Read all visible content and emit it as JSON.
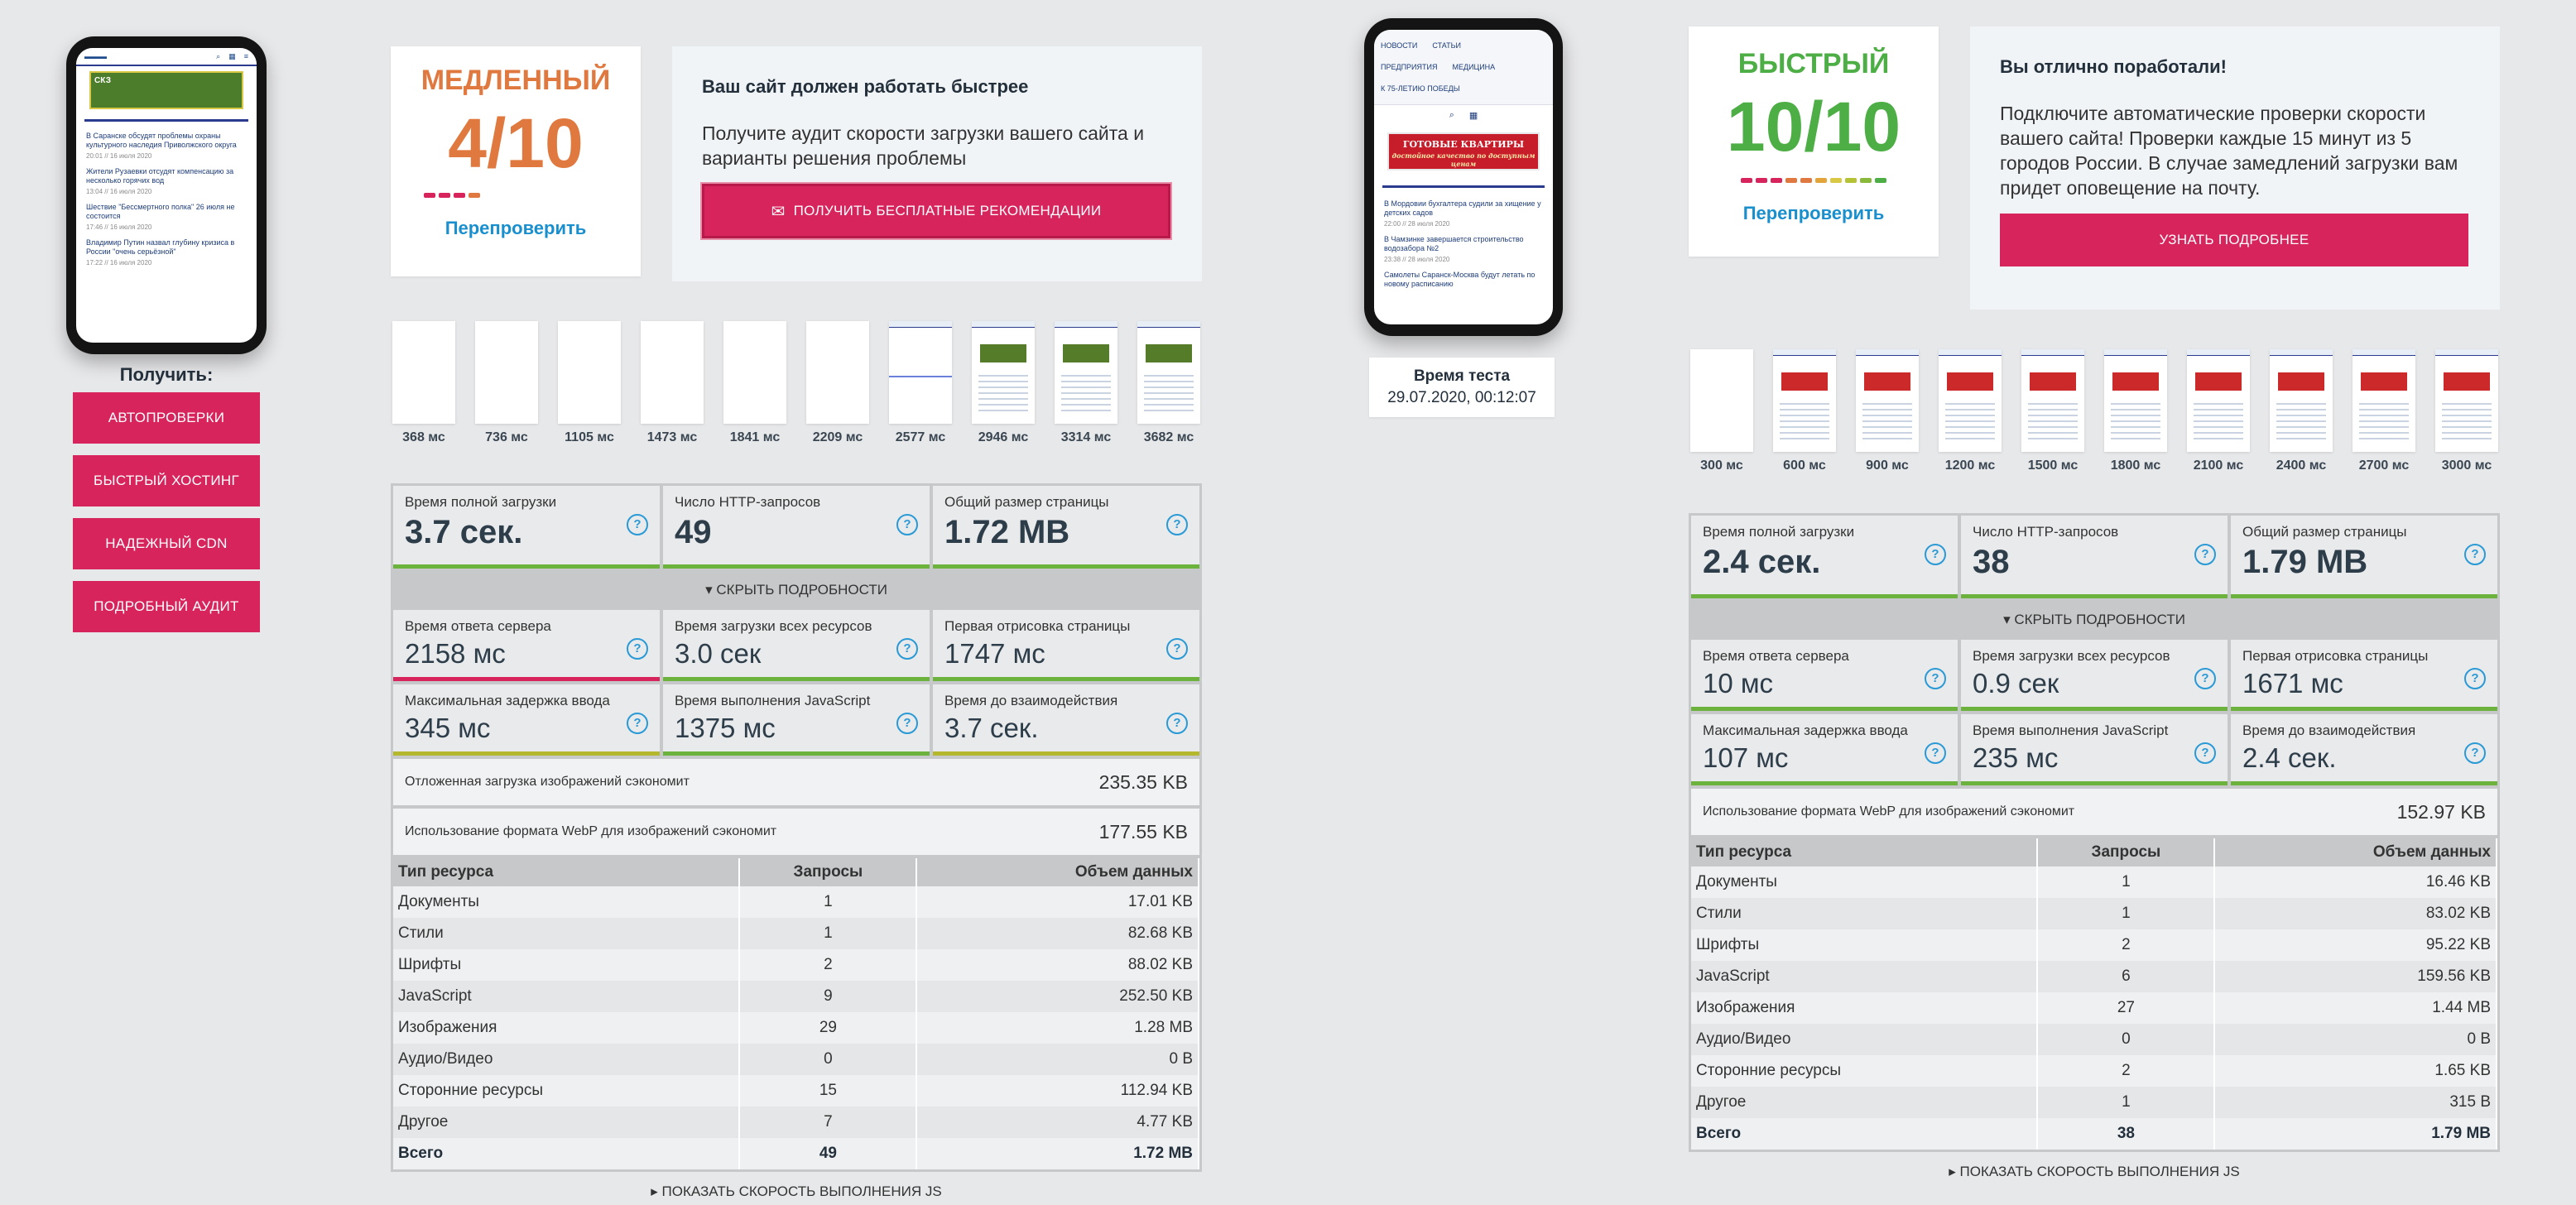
{
  "sidebar": {
    "get_label": "Получить:",
    "buttons": [
      "АВТОПРОВЕРКИ",
      "БЫСТРЫЙ ХОСТИНГ",
      "НАДЕЖНЫЙ CDN",
      "ПОДРОБНЫЙ АУДИТ"
    ]
  },
  "phone_left": {
    "ad_text": "СКЗ",
    "news": [
      {
        "title": "В Саранске обсудят проблемы охраны культурного наследия Приволжского округа",
        "time": "20:01 // 16 июля 2020"
      },
      {
        "title": "Жители Рузаевки отсудят компенсацию за несколько горячих вод",
        "time": "13:04 // 16 июля 2020"
      },
      {
        "title": "Шествие \"Бессмертного полка\" 26 июля не состоится",
        "time": "17:46 // 16 июля 2020"
      },
      {
        "title": "Владимир Путин назвал глубину кризиса в России \"очень серьёзной\"",
        "time": "17:22 // 16 июля 2020"
      }
    ]
  },
  "phone_right": {
    "nav": [
      "НОВОСТИ",
      "СТАТЬИ",
      "ПРЕДПРИЯТИЯ",
      "МЕДИЦИНА",
      "К 75-ЛЕТИЮ ПОБЕДЫ"
    ],
    "ad_text": "ГОТОВЫЕ КВАРТИРЫ",
    "ad_sub": "достойное качество по доступным ценам",
    "news": [
      {
        "title": "В Мордовии бухгалтера судили за хищение у детских садов",
        "time": "22:00 // 28 июля 2020"
      },
      {
        "title": "В Чамзинке завершается строительство водозабора №2",
        "time": "23:38 // 28 июля 2020"
      },
      {
        "title": "Самолеты Саранск-Москва будут летать по новому расписанию",
        "time": ""
      }
    ]
  },
  "test_time": {
    "label": "Время теста",
    "value": "29.07.2020, 00:12:07"
  },
  "left": {
    "score_label": "МЕДЛЕННЫЙ",
    "score": "4/10",
    "score_color": "#e0793f",
    "recheck": "Перепроверить",
    "info_title": "Ваш сайт должен работать быстрее",
    "info_text": "Получите аудит скорости загрузки вашего сайта и варианты решения проблемы",
    "info_button": "ПОЛУЧИТЬ БЕСПЛАТНЫЕ РЕКОМЕНДАЦИИ",
    "frames": [
      "368 мс",
      "736 мс",
      "1105 мс",
      "1473 мс",
      "1841 мс",
      "2209 мс",
      "2577 мс",
      "2946 мс",
      "3314 мс",
      "3682 мс"
    ],
    "main_metrics": [
      {
        "label": "Время полной загрузки",
        "value": "3.7 сек."
      },
      {
        "label": "Число HTTP-запросов",
        "value": "49"
      },
      {
        "label": "Общий размер страницы",
        "value": "1.72 MB"
      }
    ],
    "toggle": "СКРЫТЬ ПОДРОБНОСТИ",
    "detail_metrics": [
      {
        "label": "Время ответа сервера",
        "value": "2158 мс",
        "color": "#d7245c"
      },
      {
        "label": "Время загрузки всех ресурсов",
        "value": "3.0 сек",
        "color": "#6cb33e"
      },
      {
        "label": "Первая отрисовка страницы",
        "value": "1747 мс",
        "color": "#6cb33e"
      },
      {
        "label": "Максимальная задержка ввода",
        "value": "345 мс",
        "color": "#b5b82c"
      },
      {
        "label": "Время выполнения JavaScript",
        "value": "1375 мс",
        "color": "#6cb33e"
      },
      {
        "label": "Время до взаимодействия",
        "value": "3.7 сек.",
        "color": "#b5b82c"
      }
    ],
    "savings": [
      {
        "label": "Отложенная загрузка изображений сэкономит",
        "value": "235.35 KB"
      },
      {
        "label": "Использование формата WebP для изображений сэкономит",
        "value": "177.55 KB"
      }
    ],
    "table": {
      "headers": [
        "Тип ресурса",
        "Запросы",
        "Объем данных"
      ],
      "rows": [
        [
          "Документы",
          "1",
          "17.01 KB"
        ],
        [
          "Стили",
          "1",
          "82.68 KB"
        ],
        [
          "Шрифты",
          "2",
          "88.02 KB"
        ],
        [
          "JavaScript",
          "9",
          "252.50 KB"
        ],
        [
          "Изображения",
          "29",
          "1.28 MB"
        ],
        [
          "Аудио/Видео",
          "0",
          "0 B"
        ],
        [
          "Сторонние ресурсы",
          "15",
          "112.94 KB"
        ],
        [
          "Другое",
          "7",
          "4.77 KB"
        ],
        [
          "Всего",
          "49",
          "1.72 MB"
        ]
      ]
    },
    "footer_link": "ПОКАЗАТЬ СКОРОСТЬ ВЫПОЛНЕНИЯ JS"
  },
  "right": {
    "score_label": "БЫСТРЫЙ",
    "score": "10/10",
    "score_color": "#4cae45",
    "recheck": "Перепроверить",
    "info_title": "Вы отлично поработали!",
    "info_text": "Подключите автоматические проверки скорости вашего сайта! Проверки каждые 15 минут из 5 городов России. В случае замедлений загрузки вам придет оповещение на почту.",
    "info_button": "УЗНАТЬ ПОДРОБНЕЕ",
    "frames": [
      "300 мс",
      "600 мс",
      "900 мс",
      "1200 мс",
      "1500 мс",
      "1800 мс",
      "2100 мс",
      "2400 мс",
      "2700 мс",
      "3000 мс"
    ],
    "main_metrics": [
      {
        "label": "Время полной загрузки",
        "value": "2.4 сек."
      },
      {
        "label": "Число HTTP-запросов",
        "value": "38"
      },
      {
        "label": "Общий размер страницы",
        "value": "1.79 MB"
      }
    ],
    "toggle": "СКРЫТЬ ПОДРОБНОСТИ",
    "detail_metrics": [
      {
        "label": "Время ответа сервера",
        "value": "10 мс",
        "color": "#6cb33e"
      },
      {
        "label": "Время загрузки всех ресурсов",
        "value": "0.9 сек",
        "color": "#6cb33e"
      },
      {
        "label": "Первая отрисовка страницы",
        "value": "1671 мс",
        "color": "#6cb33e"
      },
      {
        "label": "Максимальная задержка ввода",
        "value": "107 мс",
        "color": "#6cb33e"
      },
      {
        "label": "Время выполнения JavaScript",
        "value": "235 мс",
        "color": "#6cb33e"
      },
      {
        "label": "Время до взаимодействия",
        "value": "2.4 сек.",
        "color": "#6cb33e"
      }
    ],
    "savings": [
      {
        "label": "Использование формата WebP для изображений сэкономит",
        "value": "152.97 KB"
      }
    ],
    "table": {
      "headers": [
        "Тип ресурса",
        "Запросы",
        "Объем данных"
      ],
      "rows": [
        [
          "Документы",
          "1",
          "16.46 KB"
        ],
        [
          "Стили",
          "1",
          "83.02 KB"
        ],
        [
          "Шрифты",
          "2",
          "95.22 KB"
        ],
        [
          "JavaScript",
          "6",
          "159.56 KB"
        ],
        [
          "Изображения",
          "27",
          "1.44 MB"
        ],
        [
          "Аудио/Видео",
          "0",
          "0 B"
        ],
        [
          "Сторонние ресурсы",
          "2",
          "1.65 KB"
        ],
        [
          "Другое",
          "1",
          "315 B"
        ],
        [
          "Всего",
          "38",
          "1.79 MB"
        ]
      ]
    },
    "footer_link": "ПОКАЗАТЬ СКОРОСТЬ ВЫПОЛНЕНИЯ JS"
  }
}
